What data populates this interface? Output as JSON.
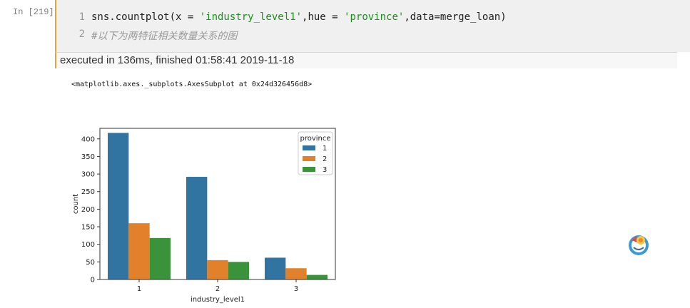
{
  "cell": {
    "prompt": "In  [219]:",
    "line_numbers": [
      "1",
      "2"
    ],
    "code_line1": {
      "p1": "sns.countplot(x = ",
      "s1": "'industry_level1'",
      "p2": ",hue = ",
      "s2": "'province'",
      "p3": ",data=merge_loan)"
    },
    "code_line2": "#以下为两特征相关数量关系的图",
    "exec_status": "executed in 136ms, finished 01:58:41 2019-11-18",
    "output_repr": "<matplotlib.axes._subplots.AxesSubplot at 0x24d326456d8>"
  },
  "colors": {
    "accent_border": "#e8a13b",
    "series": [
      "#3274a1",
      "#e1812c",
      "#3a923a"
    ]
  },
  "chart_data": {
    "type": "bar",
    "xlabel": "industry_level1",
    "ylabel": "count",
    "categories": [
      "1",
      "2",
      "3"
    ],
    "ylim": [
      0,
      430
    ],
    "yticks": [
      0,
      50,
      100,
      150,
      200,
      250,
      300,
      350,
      400
    ],
    "legend": {
      "title": "province",
      "placement": "top-right"
    },
    "series": [
      {
        "name": "1",
        "values": [
          417,
          292,
          62
        ]
      },
      {
        "name": "2",
        "values": [
          160,
          55,
          32
        ]
      },
      {
        "name": "3",
        "values": [
          118,
          50,
          13
        ]
      }
    ],
    "grid": false
  },
  "fab_icon": "sushi-plate-icon"
}
